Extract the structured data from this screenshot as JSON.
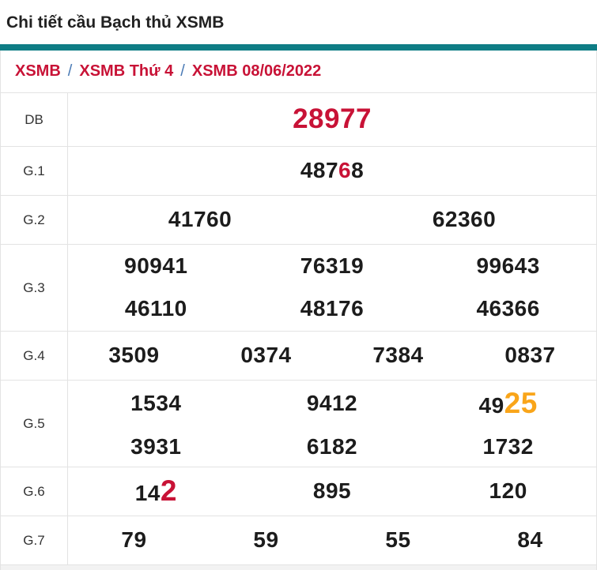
{
  "title": "Chi tiết cầu Bạch thủ XSMB",
  "breadcrumb": {
    "separator": "/",
    "links": [
      {
        "label": "XSMB"
      },
      {
        "label": "XSMB Thứ 4"
      },
      {
        "label": "XSMB 08/06/2022"
      }
    ]
  },
  "colors": {
    "accent_bar": "#0e7d85",
    "highlight_red": "#c81236",
    "highlight_orange": "#f9a51a",
    "number_black": "#1c1c1c"
  },
  "table": {
    "rows": [
      {
        "label": "DB",
        "cells": [
          {
            "segs": [
              {
                "t": "28977",
                "hl": "red-xl"
              }
            ]
          }
        ]
      },
      {
        "label": "G.1",
        "cells": [
          {
            "segs": [
              {
                "t": "487"
              },
              {
                "t": "6",
                "hl": "red"
              },
              {
                "t": "8"
              }
            ]
          }
        ]
      },
      {
        "label": "G.2",
        "cells": [
          {
            "segs": [
              {
                "t": "41760"
              }
            ]
          },
          {
            "segs": [
              {
                "t": "62360"
              }
            ]
          }
        ]
      },
      {
        "label": "G.3",
        "cells": [
          {
            "segs": [
              {
                "t": "90941"
              }
            ]
          },
          {
            "segs": [
              {
                "t": "76319"
              }
            ]
          },
          {
            "segs": [
              {
                "t": "99643"
              }
            ]
          },
          {
            "segs": [
              {
                "t": "46110"
              }
            ]
          },
          {
            "segs": [
              {
                "t": "48176"
              }
            ]
          },
          {
            "segs": [
              {
                "t": "46366"
              }
            ]
          }
        ]
      },
      {
        "label": "G.4",
        "cells": [
          {
            "segs": [
              {
                "t": "3509"
              }
            ]
          },
          {
            "segs": [
              {
                "t": "0374"
              }
            ]
          },
          {
            "segs": [
              {
                "t": "7384"
              }
            ]
          },
          {
            "segs": [
              {
                "t": "0837"
              }
            ]
          }
        ]
      },
      {
        "label": "G.5",
        "cells": [
          {
            "segs": [
              {
                "t": "1534"
              }
            ]
          },
          {
            "segs": [
              {
                "t": "9412"
              }
            ]
          },
          {
            "segs": [
              {
                "t": "49"
              },
              {
                "t": "25",
                "hl": "orange-big"
              }
            ]
          },
          {
            "segs": [
              {
                "t": "3931"
              }
            ]
          },
          {
            "segs": [
              {
                "t": "6182"
              }
            ]
          },
          {
            "segs": [
              {
                "t": "1732"
              }
            ]
          }
        ]
      },
      {
        "label": "G.6",
        "cells": [
          {
            "segs": [
              {
                "t": "14"
              },
              {
                "t": "2",
                "hl": "red-big"
              }
            ]
          },
          {
            "segs": [
              {
                "t": "895"
              }
            ]
          },
          {
            "segs": [
              {
                "t": "120"
              }
            ]
          }
        ]
      },
      {
        "label": "G.7",
        "cells": [
          {
            "segs": [
              {
                "t": "79"
              }
            ]
          },
          {
            "segs": [
              {
                "t": "59"
              }
            ]
          },
          {
            "segs": [
              {
                "t": "55"
              }
            ]
          },
          {
            "segs": [
              {
                "t": "84"
              }
            ]
          }
        ]
      }
    ]
  }
}
